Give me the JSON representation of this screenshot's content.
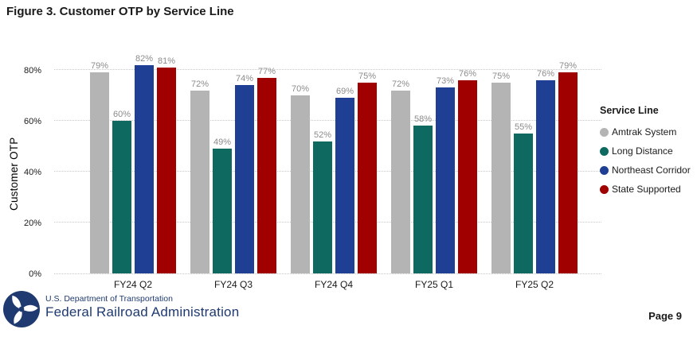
{
  "title": "Figure 3. Customer OTP by Service Line",
  "chart_data": {
    "type": "bar",
    "title": "Figure 3. Customer OTP by Service Line",
    "categories": [
      "FY24 Q2",
      "FY24 Q3",
      "FY24 Q4",
      "FY25 Q1",
      "FY25 Q2"
    ],
    "series": [
      {
        "name": "Amtrak System",
        "color": "#b4b4b4",
        "values": [
          79,
          72,
          70,
          72,
          75
        ]
      },
      {
        "name": "Long Distance",
        "color": "#0e6a61",
        "values": [
          60,
          49,
          52,
          58,
          55
        ]
      },
      {
        "name": "Northeast Corridor",
        "color": "#1f3f94",
        "values": [
          82,
          74,
          69,
          73,
          76
        ]
      },
      {
        "name": "State Supported",
        "color": "#a00000",
        "values": [
          81,
          77,
          75,
          76,
          79
        ]
      }
    ],
    "xlabel": "",
    "ylabel": "Customer OTP",
    "y_ticks": [
      "0%",
      "20%",
      "40%",
      "60%",
      "80%"
    ],
    "ylim": [
      0,
      90
    ],
    "grid": "dotted horizontal",
    "value_suffix": "%",
    "value_label_color": "#8c8c8c",
    "legend_title": "Service Line",
    "legend_position": "right"
  },
  "footer": {
    "logo": "us-dot-triskelion-logo",
    "agency_small": "U.S. Department of Transportation",
    "agency_large": "Federal Railroad Administration",
    "navy": "#1f3a70",
    "page_label": "Page 9"
  }
}
